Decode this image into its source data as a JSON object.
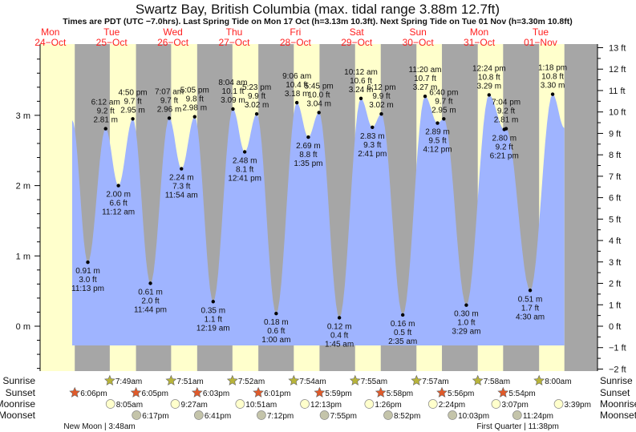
{
  "chart_data": {
    "type": "area",
    "title": "Swartz Bay, British Columbia (max. tidal range 3.88m 12.7ft)",
    "subtitle": "Times are PDT (UTC −7.0hrs). Last Spring Tide on Mon 17 Oct (h=3.13m 10.3ft). Next Spring Tide on Tue 01 Nov (h=3.30m 10.8ft)",
    "days": [
      {
        "dow": "Mon",
        "date": "24−Oct"
      },
      {
        "dow": "Tue",
        "date": "25−Oct"
      },
      {
        "dow": "Wed",
        "date": "26−Oct"
      },
      {
        "dow": "Thu",
        "date": "27−Oct"
      },
      {
        "dow": "Fri",
        "date": "28−Oct"
      },
      {
        "dow": "Sat",
        "date": "29−Oct"
      },
      {
        "dow": "Sun",
        "date": "30−Oct"
      },
      {
        "dow": "Mon",
        "date": "31−Oct"
      },
      {
        "dow": "Tue",
        "date": "01−Nov"
      }
    ],
    "y_left": {
      "unit": "m",
      "range": [
        -0.6,
        3.96
      ],
      "ticks": [
        "0 m",
        "1 m",
        "2 m",
        "3 m"
      ]
    },
    "y_right": {
      "unit": "ft",
      "range": [
        -2,
        13
      ],
      "ticks": [
        "−2 ft",
        "−1 ft",
        "0 ft",
        "1 ft",
        "2 ft",
        "3 ft",
        "4 ft",
        "5 ft",
        "6 ft",
        "7 ft",
        "8 ft",
        "9 ft",
        "10 ft",
        "11 ft",
        "12 ft",
        "13 ft"
      ]
    },
    "curve_start": {
      "day": 0,
      "hour": 17.1,
      "m": 2.93
    },
    "curve_end": {
      "day": 8,
      "hour": 17.9,
      "m": 2.82
    },
    "extremes": [
      {
        "type": "low",
        "day": 0,
        "time": "11:13 pm",
        "m": "0.91 m",
        "ft": "3.0 ft",
        "h": 0.91
      },
      {
        "type": "high",
        "day": 1,
        "time": "6:12 am",
        "m": "2.81 m",
        "ft": "9.2 ft",
        "h": 2.81
      },
      {
        "type": "low",
        "day": 1,
        "time": "11:12 am",
        "m": "2.00 m",
        "ft": "6.6 ft",
        "h": 2.0
      },
      {
        "type": "high",
        "day": 1,
        "time": "4:50 pm",
        "m": "2.95 m",
        "ft": "9.7 ft",
        "h": 2.95
      },
      {
        "type": "low",
        "day": 1,
        "time": "11:44 pm",
        "m": "0.61 m",
        "ft": "2.0 ft",
        "h": 0.61
      },
      {
        "type": "high",
        "day": 2,
        "time": "7:07 am",
        "m": "2.96 m",
        "ft": "9.7 ft",
        "h": 2.96
      },
      {
        "type": "low",
        "day": 2,
        "time": "11:54 am",
        "m": "2.24 m",
        "ft": "7.3 ft",
        "h": 2.24
      },
      {
        "type": "high",
        "day": 2,
        "time": "5:05 pm",
        "m": "2.98 m",
        "ft": "9.8 ft",
        "h": 2.98
      },
      {
        "type": "low",
        "day": 3,
        "time": "12:19 am",
        "m": "0.35 m",
        "ft": "1.1 ft",
        "h": 0.35
      },
      {
        "type": "high",
        "day": 3,
        "time": "8:04 am",
        "m": "3.09 m",
        "ft": "10.1 ft",
        "h": 3.09
      },
      {
        "type": "low",
        "day": 3,
        "time": "12:41 pm",
        "m": "2.48 m",
        "ft": "8.1 ft",
        "h": 2.48
      },
      {
        "type": "high",
        "day": 3,
        "time": "5:23 pm",
        "m": "3.02 m",
        "ft": "9.9 ft",
        "h": 3.02
      },
      {
        "type": "low",
        "day": 4,
        "time": "1:00 am",
        "m": "0.18 m",
        "ft": "0.6 ft",
        "h": 0.18
      },
      {
        "type": "high",
        "day": 4,
        "time": "9:06 am",
        "m": "3.18 m",
        "ft": "10.4 ft",
        "h": 3.18
      },
      {
        "type": "low",
        "day": 4,
        "time": "1:35 pm",
        "m": "2.69 m",
        "ft": "8.8 ft",
        "h": 2.69
      },
      {
        "type": "high",
        "day": 4,
        "time": "5:45 pm",
        "m": "3.04 m",
        "ft": "10.0 ft",
        "h": 3.04
      },
      {
        "type": "low",
        "day": 5,
        "time": "1:45 am",
        "m": "0.12 m",
        "ft": "0.4 ft",
        "h": 0.12
      },
      {
        "type": "high",
        "day": 5,
        "time": "10:12 am",
        "m": "3.24 m",
        "ft": "10.6 ft",
        "h": 3.24
      },
      {
        "type": "low",
        "day": 5,
        "time": "2:41 pm",
        "m": "2.83 m",
        "ft": "9.3 ft",
        "h": 2.83
      },
      {
        "type": "high",
        "day": 5,
        "time": "6:12 pm",
        "m": "3.02 m",
        "ft": "9.9 ft",
        "h": 3.02
      },
      {
        "type": "low",
        "day": 6,
        "time": "2:35 am",
        "m": "0.16 m",
        "ft": "0.5 ft",
        "h": 0.16
      },
      {
        "type": "high",
        "day": 6,
        "time": "11:20 am",
        "m": "3.27 m",
        "ft": "10.7 ft",
        "h": 3.27
      },
      {
        "type": "low",
        "day": 6,
        "time": "4:12 pm",
        "m": "2.89 m",
        "ft": "9.5 ft",
        "h": 2.89
      },
      {
        "type": "high",
        "day": 6,
        "time": "6:40 pm",
        "m": "2.95 m",
        "ft": "9.7 ft",
        "h": 2.95
      },
      {
        "type": "low",
        "day": 7,
        "time": "3:29 am",
        "m": "0.30 m",
        "ft": "1.0 ft",
        "h": 0.3
      },
      {
        "type": "high",
        "day": 7,
        "time": "12:24 pm",
        "m": "3.29 m",
        "ft": "10.8 ft",
        "h": 3.29
      },
      {
        "type": "low",
        "day": 7,
        "time": "6:21 pm",
        "m": "2.80 m",
        "ft": "9.2 ft",
        "h": 2.8
      },
      {
        "type": "high",
        "day": 7,
        "time": "7:04 pm",
        "m": "2.81 m",
        "ft": "9.2 ft",
        "h": 2.81
      },
      {
        "type": "low",
        "day": 8,
        "time": "4:30 am",
        "m": "0.51 m",
        "ft": "1.7 ft",
        "h": 0.51
      },
      {
        "type": "high",
        "day": 8,
        "time": "1:18 pm",
        "m": "3.30 m",
        "ft": "10.8 ft",
        "h": 3.3
      }
    ],
    "rows": {
      "sunrise": "Sunrise",
      "sunset": "Sunset",
      "moonrise": "Moonrise",
      "moonset": "Moonset"
    },
    "events": {
      "sunrise": [
        {
          "day": 1,
          "time": "7:49am"
        },
        {
          "day": 2,
          "time": "7:51am"
        },
        {
          "day": 3,
          "time": "7:52am"
        },
        {
          "day": 4,
          "time": "7:54am"
        },
        {
          "day": 5,
          "time": "7:55am"
        },
        {
          "day": 6,
          "time": "7:57am"
        },
        {
          "day": 7,
          "time": "7:58am"
        },
        {
          "day": 8,
          "time": "8:00am"
        }
      ],
      "sunset": [
        {
          "day": 0,
          "time": "6:06pm"
        },
        {
          "day": 1,
          "time": "6:05pm"
        },
        {
          "day": 2,
          "time": "6:03pm"
        },
        {
          "day": 3,
          "time": "6:01pm"
        },
        {
          "day": 4,
          "time": "5:59pm"
        },
        {
          "day": 5,
          "time": "5:58pm"
        },
        {
          "day": 6,
          "time": "5:56pm"
        },
        {
          "day": 7,
          "time": "5:54pm"
        }
      ],
      "moonrise": [
        {
          "day": 1,
          "time": "8:05am"
        },
        {
          "day": 2,
          "time": "9:27am"
        },
        {
          "day": 3,
          "time": "10:51am"
        },
        {
          "day": 4,
          "time": "12:13pm"
        },
        {
          "day": 5,
          "time": "1:26pm"
        },
        {
          "day": 6,
          "time": "2:24pm"
        },
        {
          "day": 7,
          "time": "3:07pm"
        },
        {
          "day": 8,
          "time": "3:39pm"
        }
      ],
      "moonset": [
        {
          "day": 1,
          "time": "6:17pm"
        },
        {
          "day": 2,
          "time": "6:41pm"
        },
        {
          "day": 3,
          "time": "7:12pm"
        },
        {
          "day": 4,
          "time": "7:55pm"
        },
        {
          "day": 5,
          "time": "8:52pm"
        },
        {
          "day": 6,
          "time": "10:03pm"
        },
        {
          "day": 7,
          "time": "11:24pm"
        }
      ]
    },
    "moon_phases": [
      {
        "day": 1,
        "time": "3:48am",
        "label": "New Moon | 3:48am"
      },
      {
        "day": 7,
        "time": "11:38pm",
        "label": "First Quarter | 11:38pm"
      }
    ],
    "colors": {
      "day": "#ffffcc",
      "night": "#a6a6a6",
      "water": "#9fb4ff",
      "days_text": "#ff2020",
      "sunrise": "#b8b43a",
      "sunset": "#e05a2a",
      "moonrise": "#ffffcc",
      "moonset": "#c4c4aa"
    }
  }
}
